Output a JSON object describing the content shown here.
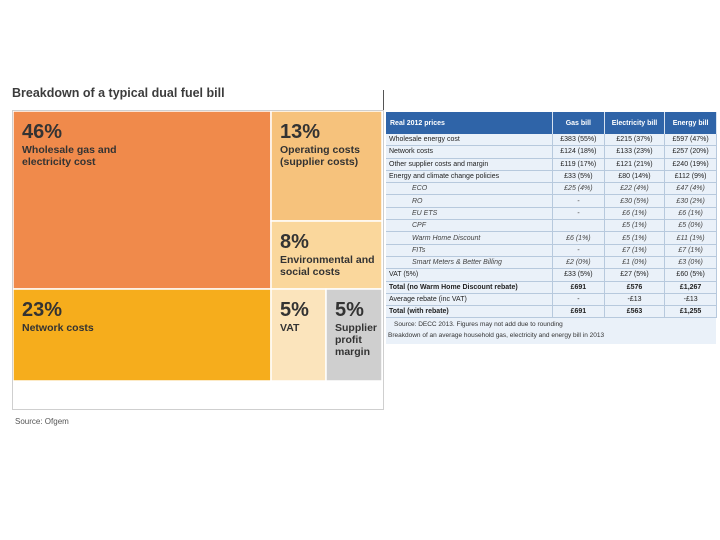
{
  "chart_data": [
    {
      "type": "treemap",
      "title": "Breakdown of a typical dual fuel bill",
      "source": "Source: Ofgem",
      "tiles": [
        {
          "key": "wholesale",
          "value": 46,
          "pct": "46%",
          "label_lines": [
            "Wholesale gas and",
            "electricity cost"
          ],
          "color": "#f08a4b"
        },
        {
          "key": "operating",
          "value": 13,
          "pct": "13%",
          "label_lines": [
            "Operating costs",
            "(supplier costs)"
          ],
          "color": "#f6c27c"
        },
        {
          "key": "environmental",
          "value": 8,
          "pct": "8%",
          "label_lines": [
            "Environmental and",
            "social costs"
          ],
          "color": "#fad79c"
        },
        {
          "key": "network",
          "value": 23,
          "pct": "23%",
          "label_lines": [
            "Network costs"
          ],
          "color": "#f6ad1c"
        },
        {
          "key": "vat",
          "value": 5,
          "pct": "5%",
          "label_lines": [
            "VAT"
          ],
          "color": "#fbe4bc"
        },
        {
          "key": "profit",
          "value": 5,
          "pct": "5%",
          "label_lines": [
            "Supplier",
            "profit",
            "margin"
          ],
          "color": "#cfcfcf"
        }
      ]
    },
    {
      "type": "table",
      "headers": [
        "Real 2012 prices",
        "Gas bill",
        "Electricity bill",
        "Energy bill"
      ],
      "rows": [
        {
          "style": "main",
          "cells": [
            "Wholesale energy cost",
            "£383 (55%)",
            "£215 (37%)",
            "£597 (47%)"
          ]
        },
        {
          "style": "main",
          "cells": [
            "Network costs",
            "£124 (18%)",
            "£133 (23%)",
            "£257 (20%)"
          ]
        },
        {
          "style": "main",
          "cells": [
            "Other supplier costs and margin",
            "£119 (17%)",
            "£121 (21%)",
            "£240 (19%)"
          ]
        },
        {
          "style": "main",
          "cells": [
            "Energy and climate change policies",
            "£33 (5%)",
            "£80 (14%)",
            "£112 (9%)"
          ]
        },
        {
          "style": "sub",
          "cells": [
            "ECO",
            "£25 (4%)",
            "£22 (4%)",
            "£47 (4%)"
          ]
        },
        {
          "style": "sub",
          "cells": [
            "RO",
            "-",
            "£30 (5%)",
            "£30 (2%)"
          ]
        },
        {
          "style": "sub",
          "cells": [
            "EU ETS",
            "-",
            "£6 (1%)",
            "£6 (1%)"
          ]
        },
        {
          "style": "sub",
          "cells": [
            "CPF",
            "",
            "£5 (1%)",
            "£5 (0%)"
          ]
        },
        {
          "style": "sub",
          "cells": [
            "Warm Home Discount",
            "£6 (1%)",
            "£5 (1%)",
            "£11 (1%)"
          ]
        },
        {
          "style": "sub",
          "cells": [
            "FITs",
            "-",
            "£7 (1%)",
            "£7 (1%)"
          ]
        },
        {
          "style": "sub",
          "cells": [
            "Smart Meters & Better Billing",
            "£2 (0%)",
            "£1 (0%)",
            "£3 (0%)"
          ]
        },
        {
          "style": "main",
          "cells": [
            "VAT (5%)",
            "£33 (5%)",
            "£27 (5%)",
            "£60 (5%)"
          ]
        },
        {
          "style": "total",
          "cells": [
            "Total (no Warm Home Discount rebate)",
            "£691",
            "£576",
            "£1,267"
          ]
        },
        {
          "style": "main",
          "cells": [
            "Average rebate (inc VAT)",
            "-",
            "-£13",
            "-£13"
          ]
        },
        {
          "style": "total",
          "cells": [
            "Total (with rebate)",
            "£691",
            "£563",
            "£1,255"
          ]
        }
      ],
      "footnote_source": "Source: DECC 2013. Figures may not add due to rounding",
      "caption": "Breakdown of an average household gas, electricity and energy bill in 2013"
    }
  ]
}
